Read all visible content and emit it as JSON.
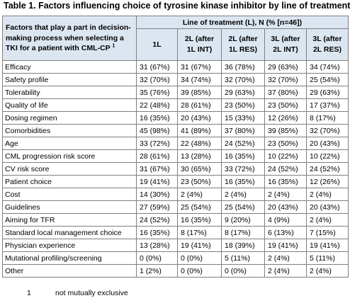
{
  "title": "Table 1. Factors influencing choice of tyrosine kinase inhibitor by line of treatment",
  "table": {
    "factors_header": "Factors that play a part in decision-making process when selecting a TKI for a patient with CML-CP",
    "factors_header_sup": "1",
    "group_header": "Line of treatment (L), N (% [n=46])",
    "columns": [
      "1L",
      "2L (after 1L INT)",
      "2L (after 1L RES)",
      "3L (after 2L INT)",
      "3L (after 2L RES)"
    ],
    "rows": [
      {
        "factor": "Efficacy",
        "values": [
          "31 (67%)",
          "31 (67%)",
          "36 (78%)",
          "29 (63%)",
          "34 (74%)"
        ]
      },
      {
        "factor": "Safety profile",
        "values": [
          "32 (70%)",
          "34 (74%)",
          "32 (70%)",
          "32 (70%)",
          "25 (54%)"
        ]
      },
      {
        "factor": "Tolerability",
        "values": [
          "35 (76%)",
          "39 (85%)",
          "29 (63%)",
          "37 (80%)",
          "29 (63%)"
        ]
      },
      {
        "factor": "Quality of life",
        "values": [
          "22 (48%)",
          "28 (61%)",
          "23 (50%)",
          "23 (50%)",
          "17 (37%)"
        ]
      },
      {
        "factor": "Dosing regimen",
        "values": [
          "16 (35%)",
          "20 (43%)",
          "15 (33%)",
          "12 (26%)",
          "8 (17%)"
        ]
      },
      {
        "factor": "Comorbidities",
        "values": [
          "45 (98%)",
          "41 (89%)",
          "37 (80%)",
          "39 (85%)",
          "32 (70%)"
        ]
      },
      {
        "factor": "Age",
        "values": [
          "33 (72%)",
          "22 (48%)",
          "24 (52%)",
          "23 (50%)",
          "20 (43%)"
        ]
      },
      {
        "factor": "CML progression risk score",
        "values": [
          "28 (61%)",
          "13 (28%)",
          "16 (35%)",
          "10 (22%)",
          "10 (22%)"
        ]
      },
      {
        "factor": "CV risk score",
        "values": [
          "31 (67%)",
          "30 (65%)",
          "33 (72%)",
          "24 (52%)",
          "24 (52%)"
        ]
      },
      {
        "factor": "Patient choice",
        "values": [
          "19 (41%)",
          "23 (50%)",
          "16 (35%)",
          "16 (35%)",
          "12 (26%)"
        ]
      },
      {
        "factor": "Cost",
        "values": [
          "14 (30%)",
          "2 (4%)",
          "2 (4%)",
          "2 (4%)",
          "2 (4%)"
        ]
      },
      {
        "factor": "Guidelines",
        "values": [
          "27 (59%)",
          "25 (54%)",
          "25 (54%)",
          "20 (43%)",
          "20 (43%)"
        ]
      },
      {
        "factor": "Aiming for TFR",
        "values": [
          "24 (52%)",
          "16 (35%)",
          "9 (20%)",
          "4 (9%)",
          "2 (4%)"
        ]
      },
      {
        "factor": "Standard local management choice",
        "values": [
          "16 (35%)",
          "8 (17%)",
          "8 (17%)",
          "6 (13%)",
          "7 (15%)"
        ]
      },
      {
        "factor": "Physician experience",
        "values": [
          "13 (28%)",
          "19 (41%)",
          "18 (39%)",
          "19 (41%)",
          "19 (41%)"
        ]
      },
      {
        "factor": "Mutational profiling/screening",
        "values": [
          "0 (0%)",
          "0 (0%)",
          "5 (11%)",
          "2 (4%)",
          "5 (11%)"
        ]
      },
      {
        "factor": "Other",
        "values": [
          "1 (2%)",
          "0 (0%)",
          "0 (0%)",
          "2 (4%)",
          "2 (4%)"
        ]
      }
    ]
  },
  "footnote": {
    "number": "1",
    "text": "not mutually exclusive"
  }
}
